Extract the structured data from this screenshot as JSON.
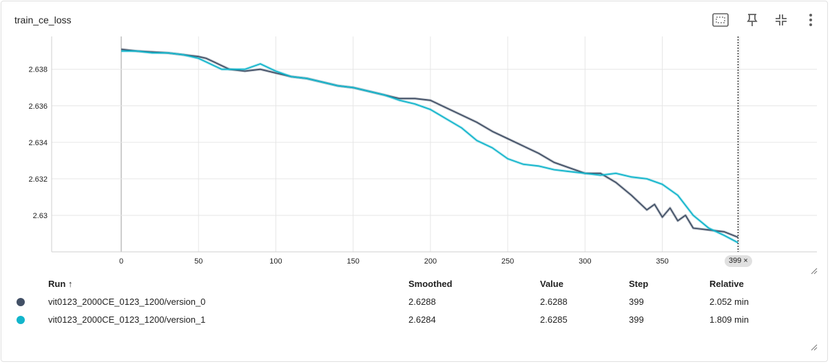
{
  "card": {
    "title": "train_ce_loss"
  },
  "toolbar": {
    "icons": [
      "fit-domain-icon",
      "pin-icon",
      "collapse-icon",
      "more-vert-icon"
    ]
  },
  "chart_data": {
    "type": "line",
    "title": "train_ce_loss",
    "xlabel": "",
    "ylabel": "",
    "xlim": [
      -45,
      450
    ],
    "ylim": [
      2.628,
      2.6398
    ],
    "x_ticks": [
      0,
      50,
      100,
      150,
      200,
      250,
      300,
      350
    ],
    "y_ticks": [
      2.63,
      2.632,
      2.634,
      2.636,
      2.638
    ],
    "y_tick_labels": [
      "2.63",
      "2.632",
      "2.634",
      "2.636",
      "2.638"
    ],
    "grid": true,
    "cursor_step": 399,
    "cursor_label": "399 ×",
    "series": [
      {
        "name": "vit0123_2000CE_0123_1200/version_0",
        "color": "#425066",
        "x": [
          0,
          10,
          20,
          30,
          40,
          50,
          55,
          60,
          65,
          70,
          80,
          90,
          100,
          110,
          120,
          130,
          140,
          150,
          160,
          170,
          180,
          190,
          200,
          210,
          220,
          230,
          240,
          250,
          260,
          270,
          280,
          290,
          300,
          310,
          320,
          330,
          340,
          345,
          350,
          355,
          360,
          365,
          370,
          380,
          390,
          399
        ],
        "values": [
          2.6391,
          2.639,
          2.63895,
          2.6389,
          2.6388,
          2.6387,
          2.6386,
          2.6384,
          2.6382,
          2.638,
          2.6379,
          2.638,
          2.6378,
          2.6376,
          2.6375,
          2.6373,
          2.6371,
          2.637,
          2.6368,
          2.6366,
          2.6364,
          2.6364,
          2.6363,
          2.6359,
          2.6355,
          2.6351,
          2.6346,
          2.6342,
          2.6338,
          2.6334,
          2.6329,
          2.6326,
          2.6323,
          2.6323,
          2.6318,
          2.6311,
          2.6303,
          2.6306,
          2.6299,
          2.6304,
          2.6297,
          2.63,
          2.6293,
          2.6292,
          2.6291,
          2.6288
        ]
      },
      {
        "name": "vit0123_2000CE_0123_1200/version_1",
        "color": "#12b5cb",
        "x": [
          0,
          10,
          20,
          30,
          40,
          50,
          55,
          60,
          65,
          70,
          80,
          90,
          100,
          110,
          120,
          130,
          140,
          150,
          160,
          170,
          180,
          190,
          200,
          210,
          220,
          230,
          240,
          250,
          260,
          270,
          280,
          290,
          300,
          310,
          320,
          330,
          340,
          350,
          360,
          370,
          380,
          390,
          399
        ],
        "values": [
          2.639,
          2.639,
          2.6389,
          2.6389,
          2.6388,
          2.6386,
          2.6384,
          2.6382,
          2.638,
          2.638,
          2.638,
          2.6383,
          2.6379,
          2.6376,
          2.6375,
          2.6373,
          2.6371,
          2.637,
          2.6368,
          2.6366,
          2.6363,
          2.6361,
          2.6358,
          2.6353,
          2.6348,
          2.6341,
          2.6337,
          2.6331,
          2.6328,
          2.6327,
          2.6325,
          2.6324,
          2.6323,
          2.6322,
          2.6323,
          2.6321,
          2.632,
          2.6317,
          2.6311,
          2.63,
          2.6293,
          2.6289,
          2.6285
        ]
      }
    ]
  },
  "table": {
    "headers": {
      "run": "Run ↑",
      "smoothed": "Smoothed",
      "value": "Value",
      "step": "Step",
      "relative": "Relative"
    },
    "rows": [
      {
        "color": "#425066",
        "run": "vit0123_2000CE_0123_1200/version_0",
        "smoothed": "2.6288",
        "value": "2.6288",
        "step": "399",
        "relative": "2.052 min"
      },
      {
        "color": "#12b5cb",
        "run": "vit0123_2000CE_0123_1200/version_1",
        "smoothed": "2.6284",
        "value": "2.6285",
        "step": "399",
        "relative": "1.809 min"
      }
    ]
  }
}
